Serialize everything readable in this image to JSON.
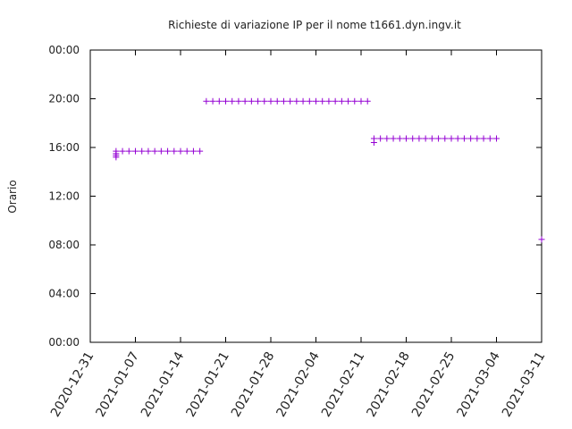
{
  "chart_data": {
    "type": "scatter",
    "title": "Richieste di variazione IP per il nome t1661.dyn.ingv.it",
    "y_label": "Orario",
    "x": [
      "2021-01-04",
      "2021-01-04",
      "2021-01-04",
      "2021-01-04",
      "2021-01-05",
      "2021-01-06",
      "2021-01-07",
      "2021-01-08",
      "2021-01-09",
      "2021-01-10",
      "2021-01-11",
      "2021-01-12",
      "2021-01-13",
      "2021-01-14",
      "2021-01-15",
      "2021-01-16",
      "2021-01-17",
      "2021-01-18",
      "2021-01-19",
      "2021-01-20",
      "2021-01-21",
      "2021-01-22",
      "2021-01-23",
      "2021-01-24",
      "2021-01-25",
      "2021-01-26",
      "2021-01-27",
      "2021-01-28",
      "2021-01-29",
      "2021-01-30",
      "2021-01-31",
      "2021-02-01",
      "2021-02-02",
      "2021-02-03",
      "2021-02-04",
      "2021-02-05",
      "2021-02-06",
      "2021-02-07",
      "2021-02-08",
      "2021-02-09",
      "2021-02-10",
      "2021-02-11",
      "2021-02-12",
      "2021-02-13",
      "2021-02-13",
      "2021-02-14",
      "2021-02-15",
      "2021-02-16",
      "2021-02-17",
      "2021-02-18",
      "2021-02-19",
      "2021-02-20",
      "2021-02-21",
      "2021-02-22",
      "2021-02-23",
      "2021-02-24",
      "2021-02-25",
      "2021-02-26",
      "2021-02-27",
      "2021-02-28",
      "2021-03-01",
      "2021-03-02",
      "2021-03-03",
      "2021-03-04",
      "2021-03-11"
    ],
    "series": [
      {
        "color": "#9400d3",
        "values": [
          15.7,
          15.5,
          15.35,
          15.2,
          15.7,
          15.7,
          15.7,
          15.7,
          15.7,
          15.7,
          15.7,
          15.7,
          15.7,
          15.7,
          15.7,
          15.7,
          15.7,
          19.8,
          19.8,
          19.8,
          19.8,
          19.8,
          19.8,
          19.8,
          19.8,
          19.8,
          19.8,
          19.8,
          19.8,
          19.8,
          19.8,
          19.8,
          19.8,
          19.8,
          19.8,
          19.8,
          19.8,
          19.8,
          19.8,
          19.8,
          19.8,
          19.8,
          19.8,
          16.73,
          16.4,
          16.73,
          16.73,
          16.73,
          16.73,
          16.73,
          16.73,
          16.73,
          16.73,
          16.73,
          16.73,
          16.73,
          16.73,
          16.73,
          16.73,
          16.73,
          16.73,
          16.73,
          16.73,
          16.73,
          8.45
        ]
      }
    ],
    "xlim": [
      "2020-12-31",
      "2021-03-11"
    ],
    "xticks": [
      "2020-12-31",
      "2021-01-07",
      "2021-01-14",
      "2021-01-21",
      "2021-01-28",
      "2021-02-04",
      "2021-02-11",
      "2021-02-18",
      "2021-02-25",
      "2021-03-04",
      "2021-03-11"
    ],
    "ylim": [
      0,
      24
    ],
    "yticks": [
      {
        "value": 0,
        "label": "00:00"
      },
      {
        "value": 4,
        "label": "04:00"
      },
      {
        "value": 8,
        "label": "08:00"
      },
      {
        "value": 12,
        "label": "12:00"
      },
      {
        "value": 16,
        "label": "16:00"
      },
      {
        "value": 20,
        "label": "20:00"
      },
      {
        "value": 24,
        "label": "00:00"
      }
    ]
  }
}
